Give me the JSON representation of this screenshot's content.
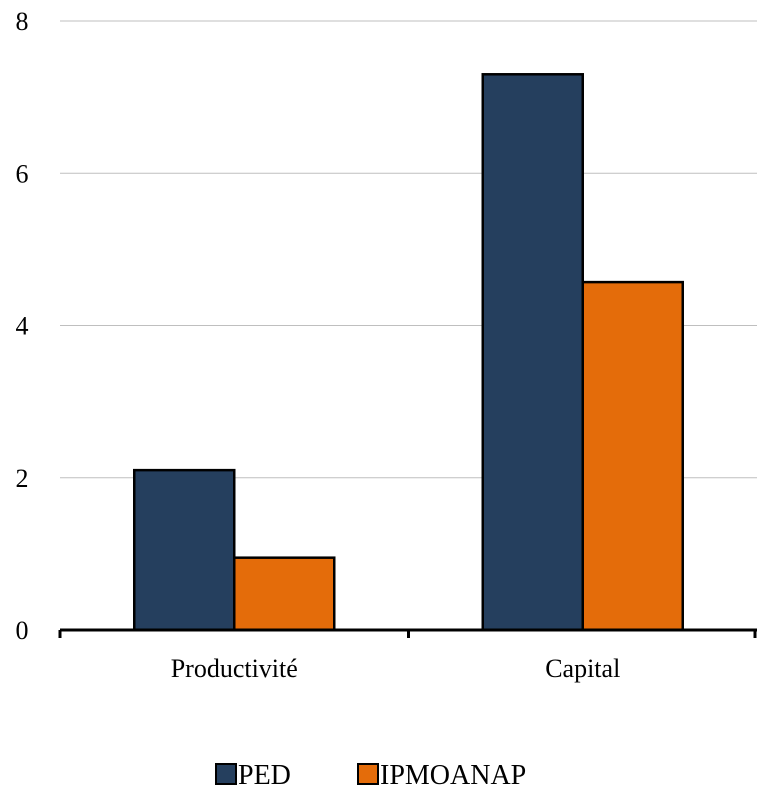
{
  "chart_data": {
    "type": "bar",
    "categories": [
      "Productivité",
      "Capital"
    ],
    "series": [
      {
        "name": "PED",
        "values": [
          2.1,
          7.3
        ],
        "color": "#253F5E"
      },
      {
        "name": "IPMOANAP",
        "values": [
          0.95,
          4.57
        ],
        "color": "#E46C0A"
      }
    ],
    "ylim": [
      0,
      8
    ],
    "yticks": [
      "0",
      "2",
      "4",
      "6",
      "8"
    ],
    "grid": true,
    "legend_position": "bottom"
  }
}
